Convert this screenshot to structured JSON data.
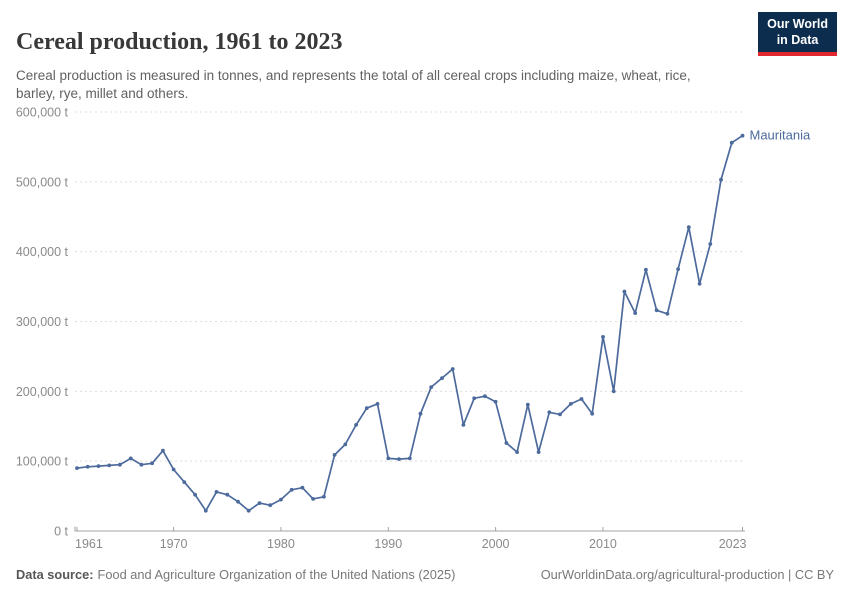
{
  "header": {
    "title": "Cereal production, 1961 to 2023",
    "subtitle": "Cereal production is measured in tonnes, and represents the total of all cereal crops including maize, wheat, rice, barley, rye, millet and others.",
    "logo": {
      "line1": "Our World",
      "line2": "in Data"
    }
  },
  "chart_data": {
    "type": "line",
    "title": "Cereal production, 1961 to 2023",
    "unit": "t",
    "xlim": [
      1961,
      2023
    ],
    "ylim": [
      0,
      600000
    ],
    "grid": "horizontal-dashed",
    "legend_position": "end-of-line-label",
    "x_ticks": [
      1961,
      1970,
      1980,
      1990,
      2000,
      2010,
      2023
    ],
    "y_ticks": [
      0,
      100000,
      200000,
      300000,
      400000,
      500000,
      600000
    ],
    "y_tick_labels": [
      "0 t",
      "100,000 t",
      "200,000 t",
      "300,000 t",
      "400,000 t",
      "500,000 t",
      "600,000 t"
    ],
    "series": [
      {
        "name": "Mauritania",
        "color": "#4c6a9c",
        "x": [
          1961,
          1962,
          1963,
          1964,
          1965,
          1966,
          1967,
          1968,
          1969,
          1970,
          1971,
          1972,
          1973,
          1974,
          1975,
          1976,
          1977,
          1978,
          1979,
          1980,
          1981,
          1982,
          1983,
          1984,
          1985,
          1986,
          1987,
          1988,
          1989,
          1990,
          1991,
          1992,
          1993,
          1994,
          1995,
          1996,
          1997,
          1998,
          1999,
          2000,
          2001,
          2002,
          2003,
          2004,
          2005,
          2006,
          2007,
          2008,
          2009,
          2010,
          2011,
          2012,
          2013,
          2014,
          2015,
          2016,
          2017,
          2018,
          2019,
          2020,
          2021,
          2022,
          2023
        ],
        "values": [
          90000,
          92000,
          93000,
          94000,
          95000,
          104000,
          95000,
          97000,
          115000,
          88000,
          70000,
          52000,
          29000,
          56000,
          52000,
          42000,
          29000,
          40000,
          37000,
          45000,
          59000,
          62000,
          46000,
          49000,
          109000,
          124000,
          152000,
          176000,
          182000,
          104000,
          103000,
          104000,
          168000,
          206000,
          219000,
          232000,
          152000,
          190000,
          193000,
          185000,
          126000,
          113000,
          181000,
          113000,
          170000,
          167000,
          182000,
          189000,
          168000,
          278000,
          200000,
          343000,
          312000,
          374000,
          316000,
          311000,
          375000,
          435000,
          354000,
          411000,
          503000,
          556000,
          566000
        ]
      }
    ]
  },
  "footer": {
    "source_label": "Data source:",
    "source_text": "Food and Agriculture Organization of the United Nations (2025)",
    "link_text": "OurWorldinData.org/agricultural-production",
    "separator": " | ",
    "license_text": "CC BY"
  },
  "colors": {
    "line": "#4c6a9c",
    "grid": "#dedede",
    "axis": "#a3a3a3",
    "tick_label": "#8a8a8a",
    "title": "#383838",
    "subtitle": "#616161",
    "logo_bg": "#0d2d4f",
    "logo_red": "#e0262e"
  }
}
